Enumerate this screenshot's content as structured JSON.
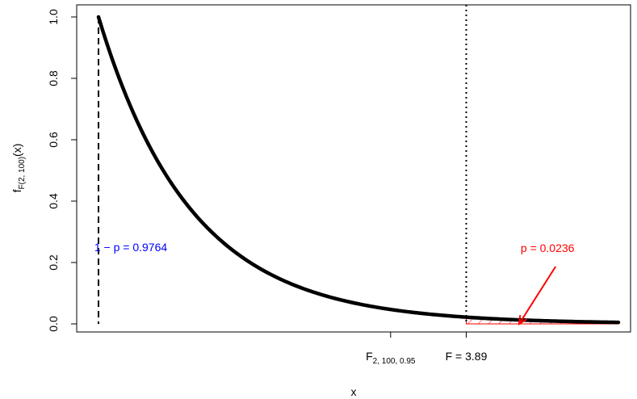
{
  "chart_data": {
    "type": "line",
    "xlabel": "x",
    "ylabel": {
      "main": "f",
      "sub": "F(2, 100)",
      "suffix": "(x)"
    },
    "distribution": {
      "family": "F",
      "df1": 2,
      "df2": 100
    },
    "xlim": [
      0,
      6.1
    ],
    "ylim": [
      0,
      1.0
    ],
    "y_ticks": [
      "0.0",
      "0.2",
      "0.4",
      "0.6",
      "0.8",
      "1.0"
    ],
    "y_tick_values": [
      0.0,
      0.2,
      0.4,
      0.6,
      0.8,
      1.0
    ],
    "x_ticks": [
      {
        "value": 3.09,
        "main": "F",
        "sub": "2, 100, 0.95",
        "suffix": ""
      },
      {
        "value": 3.89,
        "main": "F = 3.89",
        "sub": "",
        "suffix": ""
      }
    ],
    "curve": {
      "x": [
        0.0,
        0.25,
        0.5,
        0.75,
        1.0,
        1.25,
        1.5,
        1.75,
        2.0,
        2.25,
        2.5,
        2.75,
        3.0,
        3.25,
        3.5,
        3.75,
        3.89,
        4.0,
        4.25,
        4.5,
        4.75,
        5.0,
        5.25,
        5.5
      ],
      "y": [
        1.0,
        0.7792,
        0.6064,
        0.4715,
        0.3664,
        0.2845,
        0.2207,
        0.1711,
        0.1326,
        0.1027,
        0.0795,
        0.0615,
        0.0475,
        0.0367,
        0.0284,
        0.0219,
        0.019,
        0.0169,
        0.0131,
        0.0101,
        0.0077,
        0.006,
        0.0046,
        0.0036
      ],
      "color": "#000000"
    },
    "critical_value": 3.89,
    "shaded_region": {
      "from": 3.89,
      "to": 5.5,
      "color": "#ff0000"
    },
    "annotations": {
      "left": {
        "text": "1 − p = 0.9764",
        "color": "#0000ff",
        "x": 0.0,
        "y": 0.25
      },
      "right": {
        "text": "p = 0.0236",
        "color": "#ff0000",
        "x": 4.75,
        "y": 0.25
      },
      "arrow_from": {
        "x": 4.75,
        "y": 0.2
      },
      "arrow_to": {
        "x": 4.45,
        "y": 0.0
      }
    },
    "vlines": [
      {
        "x": 0.0,
        "style": "dashed",
        "color": "#000000"
      },
      {
        "x": 3.89,
        "style": "dotted",
        "color": "#000000"
      }
    ]
  }
}
